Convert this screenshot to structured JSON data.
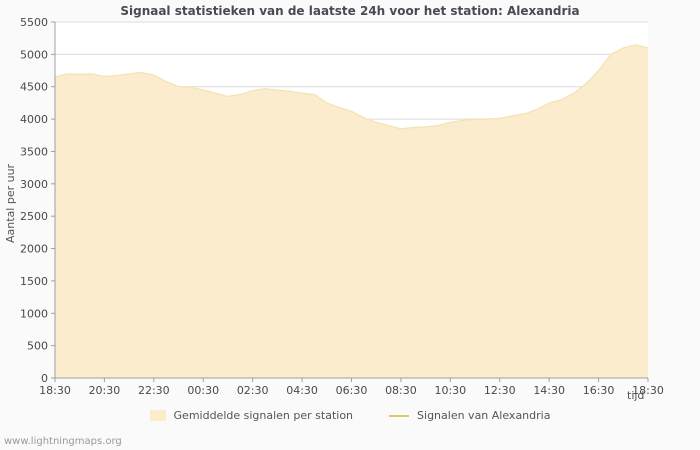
{
  "title": "Signaal statistieken van de laatste 24h voor het station: Alexandria",
  "ylabel": "Aantal per uur",
  "xlabel": "tijd",
  "watermark": "www.lightningmaps.org",
  "legend": [
    {
      "label": "Gemiddelde signalen per station",
      "type": "area",
      "color": "#faeccd"
    },
    {
      "label": "Signalen van Alexandria",
      "type": "line",
      "color": "#ddc966"
    }
  ],
  "chart_data": {
    "type": "area",
    "title": "Signaal statistieken van de laatste 24h voor het station: Alexandria",
    "xlabel": "tijd",
    "ylabel": "Aantal per uur",
    "ylim": [
      0,
      5500
    ],
    "ytick_step": 500,
    "grid": true,
    "legend_position": "bottom",
    "x_start": "18:30",
    "x_step_minutes": 30,
    "x_ticks": [
      "18:30",
      "20:30",
      "22:30",
      "00:30",
      "02:30",
      "04:30",
      "06:30",
      "08:30",
      "10:30",
      "12:30",
      "14:30",
      "16:30",
      "18:30"
    ],
    "series": [
      {
        "name": "Gemiddelde signalen per station",
        "type": "area",
        "fill_color": "#faeccd",
        "edge_color": "#f3e2b3",
        "values": [
          4650,
          4700,
          4690,
          4700,
          4660,
          4670,
          4700,
          4720,
          4680,
          4580,
          4500,
          4490,
          4450,
          4400,
          4350,
          4380,
          4440,
          4470,
          4450,
          4430,
          4400,
          4380,
          4250,
          4180,
          4120,
          4020,
          3950,
          3900,
          3850,
          3870,
          3880,
          3900,
          3950,
          3980,
          4000,
          4000,
          4010,
          4050,
          4080,
          4150,
          4250,
          4300,
          4400,
          4550,
          4750,
          5000,
          5100,
          5150,
          5100
        ]
      },
      {
        "name": "Signalen van Alexandria",
        "type": "line",
        "color": "#ddc966",
        "values": []
      }
    ],
    "colors": {
      "plot_background": "#ffffff",
      "gridline": "#dcdcdc",
      "axis": "#a0a0a0"
    }
  }
}
